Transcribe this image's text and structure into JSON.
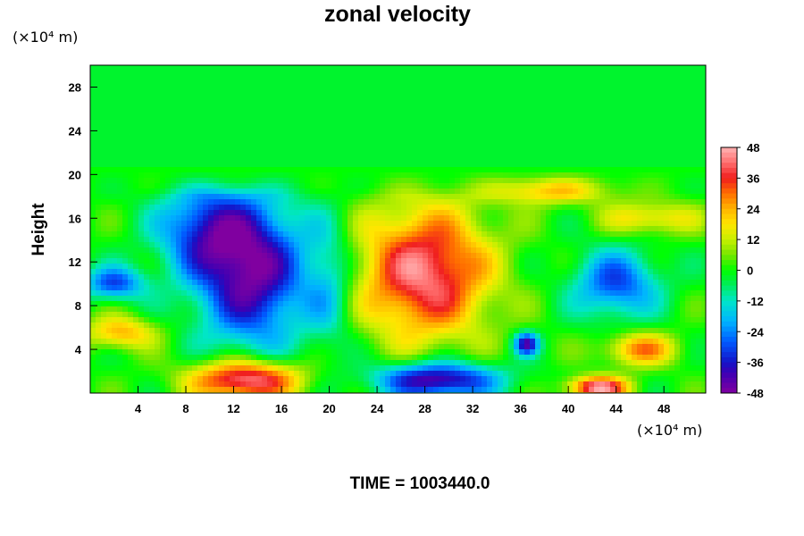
{
  "chart_data": {
    "type": "heatmap",
    "title": "zonal velocity",
    "ylabel": "Height",
    "x_unit": "(×10⁴ m)",
    "y_unit": "(×10⁴ m)",
    "footer": "TIME = 1003440.0",
    "xlim": [
      0,
      51.5
    ],
    "ylim": [
      0,
      30
    ],
    "x_ticks": [
      4,
      8,
      12,
      16,
      20,
      24,
      28,
      32,
      36,
      40,
      44,
      48
    ],
    "y_ticks": [
      4,
      8,
      12,
      16,
      20,
      24,
      28
    ],
    "colorbar": {
      "min": -48,
      "max": 48,
      "ticks": [
        48,
        36,
        24,
        12,
        0,
        -12,
        -24,
        -36,
        -48
      ]
    },
    "features": [
      {
        "label": "positive core",
        "x": 28,
        "y": 11,
        "rx": 5.5,
        "ry": 6,
        "value": 44
      },
      {
        "label": "negative core",
        "x": 13.5,
        "y": 11,
        "rx": 4.5,
        "ry": 6.5,
        "value": -46
      },
      {
        "label": "negative mid",
        "x": 9.5,
        "y": 15,
        "rx": 4,
        "ry": 4,
        "value": -28
      },
      {
        "label": "surface jet",
        "x": 13,
        "y": 1.2,
        "rx": 4.5,
        "ry": 1.8,
        "value": 48
      },
      {
        "label": "surface jet east",
        "x": 42.5,
        "y": 0.5,
        "rx": 2.5,
        "ry": 1,
        "value": 46
      },
      {
        "label": "surface low",
        "x": 29,
        "y": 1.2,
        "rx": 5,
        "ry": 1.6,
        "value": -46
      },
      {
        "label": "west low",
        "x": 2,
        "y": 10,
        "rx": 2.5,
        "ry": 1.5,
        "value": -30
      },
      {
        "label": "west warm",
        "x": 2.5,
        "y": 5.5,
        "rx": 3,
        "ry": 1.5,
        "value": 24
      },
      {
        "label": "upper warm",
        "x": 38.5,
        "y": 19,
        "rx": 5,
        "ry": 1.5,
        "value": 30
      },
      {
        "label": "east low",
        "x": 44,
        "y": 10,
        "rx": 3.5,
        "ry": 3,
        "value": -30
      },
      {
        "label": "east warm",
        "x": 46,
        "y": 4,
        "rx": 3,
        "ry": 1.5,
        "value": 28
      },
      {
        "label": "upper east warm",
        "x": 47,
        "y": 16,
        "rx": 4,
        "ry": 1.5,
        "value": 20
      },
      {
        "label": "mid cyan",
        "x": 20,
        "y": 10,
        "rx": 2,
        "ry": 6,
        "value": -16
      },
      {
        "label": "small low",
        "x": 36.5,
        "y": 4.5,
        "rx": 1,
        "ry": 1,
        "value": -40
      }
    ]
  }
}
